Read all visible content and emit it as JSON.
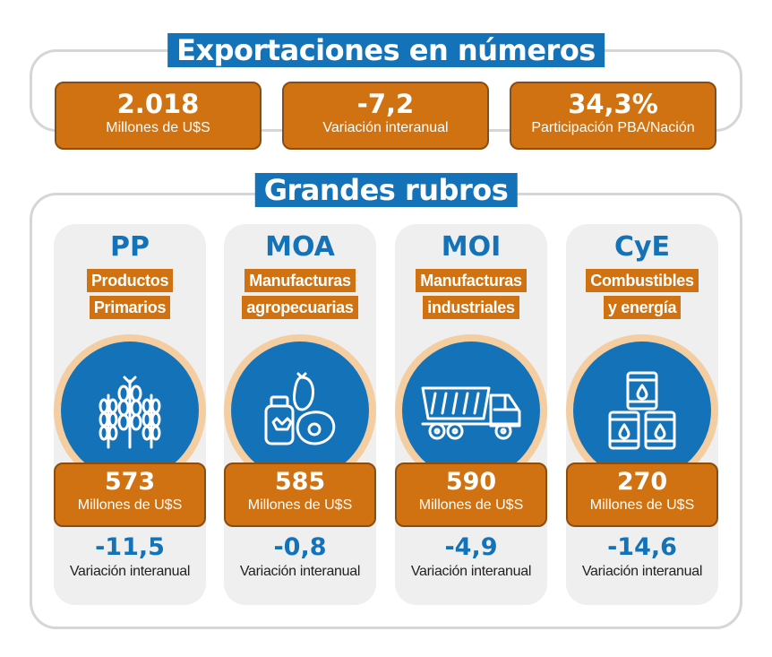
{
  "header": {
    "title": "Exportaciones en números"
  },
  "kpis": [
    {
      "value": "2.018",
      "label": "Millones de U$S"
    },
    {
      "value": "-7,2",
      "label": "Variación interanual"
    },
    {
      "value": "34,3%",
      "label": "Participación PBA/Nación"
    }
  ],
  "section": {
    "title": "Grandes rubros"
  },
  "rubros": [
    {
      "code": "PP",
      "name_line1": "Productos",
      "name_line2": "Primarios",
      "icon": "wheat-icon",
      "value": "573",
      "unit": "Millones de U$S",
      "variation": "-11,5",
      "variation_label": "Variación interanual"
    },
    {
      "code": "MOA",
      "name_line1": "Manufacturas",
      "name_line2": "agropecuarias",
      "icon": "agro-food-icon",
      "value": "585",
      "unit": "Millones de U$S",
      "variation": "-0,8",
      "variation_label": "Variación interanual"
    },
    {
      "code": "MOI",
      "name_line1": "Manufacturas",
      "name_line2": "industriales",
      "icon": "dump-truck-icon",
      "value": "590",
      "unit": "Millones de U$S",
      "variation": "-4,9",
      "variation_label": "Variación interanual"
    },
    {
      "code": "CyE",
      "name_line1": "Combustibles",
      "name_line2": "y energía",
      "icon": "oil-barrels-icon",
      "value": "270",
      "unit": "Millones de U$S",
      "variation": "-14,6",
      "variation_label": "Variación interanual"
    }
  ],
  "colors": {
    "blue": "#1472b8",
    "orange": "#d07211",
    "ring": "#f4cda0",
    "card": "#efefef"
  }
}
